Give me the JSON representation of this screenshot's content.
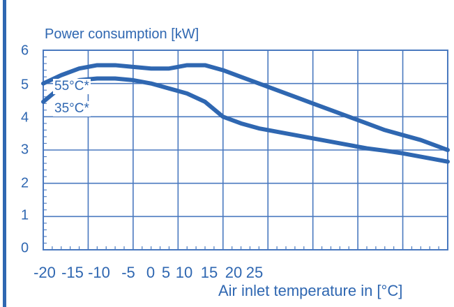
{
  "chart_data": {
    "type": "line",
    "title": "Power consumption [kW]",
    "xlabel": "Air inlet temperature in [°C]",
    "ylabel": "",
    "x_tick_labels": [
      "-20",
      "-15",
      "-10",
      "-5",
      "0",
      "5",
      "10",
      "15",
      "20",
      "25"
    ],
    "y_tick_labels": [
      "0",
      "1",
      "2",
      "3",
      "4",
      "5",
      "6"
    ],
    "xlim": [
      -20,
      25
    ],
    "ylim": [
      0,
      6
    ],
    "grid": true,
    "series": [
      {
        "name": "55°C*",
        "x": [
          -20,
          -18,
          -16,
          -14,
          -12,
          -10,
          -8,
          -6,
          -4,
          -2,
          0,
          2,
          4,
          6,
          8,
          10,
          12,
          14,
          16,
          18,
          20,
          22,
          24,
          25
        ],
        "values": [
          5.0,
          5.25,
          5.45,
          5.55,
          5.55,
          5.5,
          5.45,
          5.45,
          5.55,
          5.55,
          5.4,
          5.2,
          5.0,
          4.8,
          4.6,
          4.4,
          4.2,
          4.0,
          3.8,
          3.6,
          3.45,
          3.3,
          3.1,
          3.0
        ]
      },
      {
        "name": "35°C*",
        "x": [
          -20,
          -18,
          -16,
          -14,
          -12,
          -10,
          -8,
          -6,
          -4,
          -2,
          0,
          2,
          4,
          6,
          8,
          10,
          12,
          14,
          16,
          18,
          20,
          22,
          24,
          25
        ],
        "values": [
          4.45,
          4.9,
          5.1,
          5.15,
          5.15,
          5.1,
          5.0,
          4.85,
          4.7,
          4.45,
          4.0,
          3.8,
          3.65,
          3.55,
          3.45,
          3.35,
          3.25,
          3.15,
          3.05,
          2.98,
          2.9,
          2.8,
          2.7,
          2.65
        ]
      }
    ],
    "colors": {
      "line": "#2f67b1",
      "grid": "#4a79bf",
      "text": "#2f67b1"
    }
  }
}
